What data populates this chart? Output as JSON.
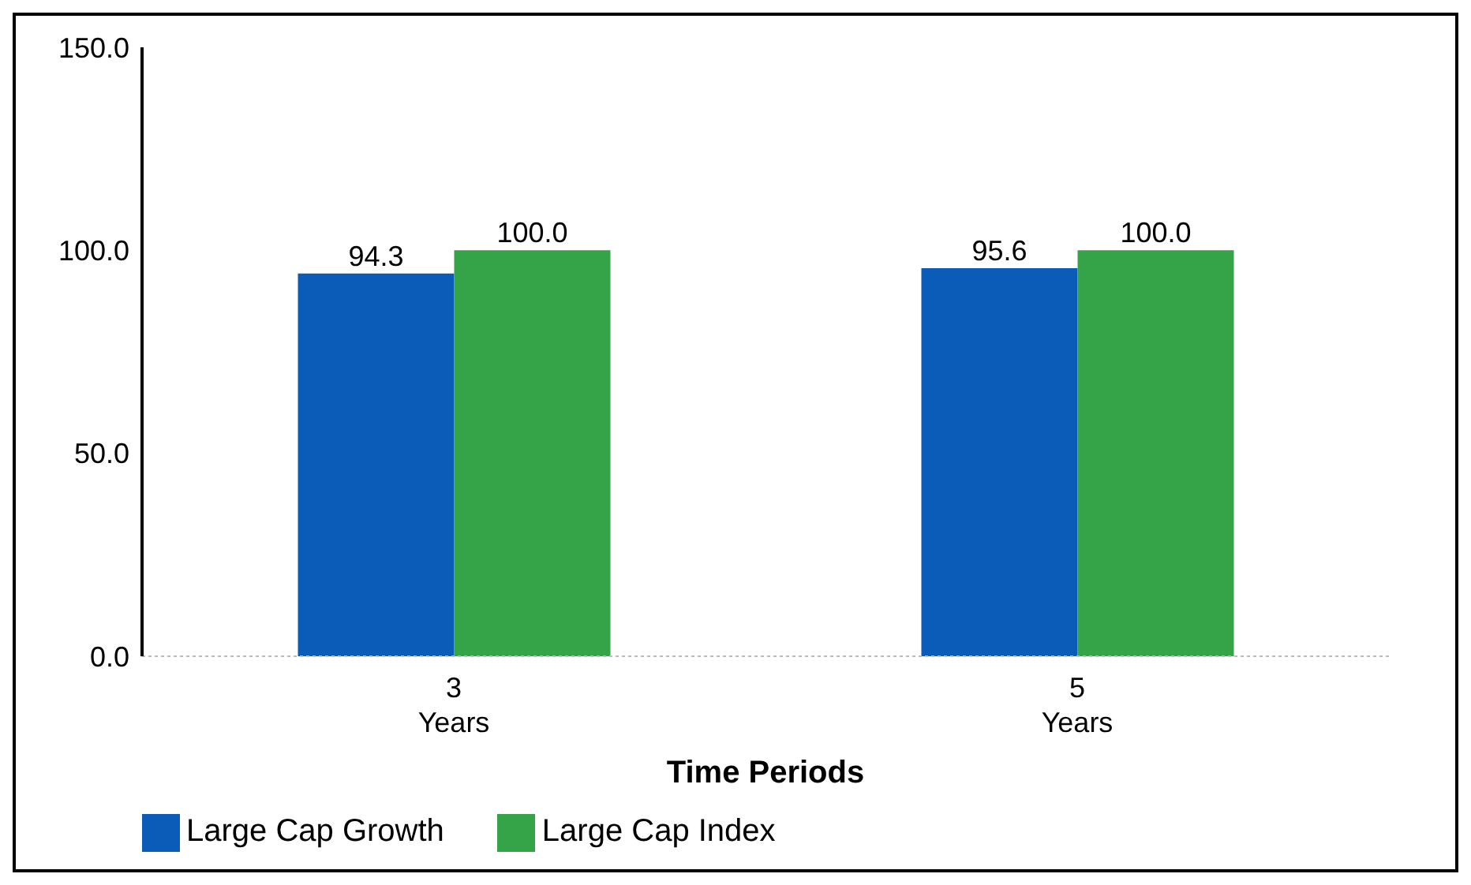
{
  "chart_data": {
    "type": "bar",
    "xlabel": "Time Periods",
    "categories": [
      "3\nYears",
      "5\nYears"
    ],
    "series": [
      {
        "name": "Large Cap Growth",
        "color": "#0a5cb8",
        "values": [
          94.3,
          95.6
        ],
        "value_labels": [
          "94.3",
          "95.6"
        ]
      },
      {
        "name": "Large Cap Index",
        "color": "#35a348",
        "values": [
          100.0,
          100.0
        ],
        "value_labels": [
          "100.0",
          "100.0"
        ]
      }
    ],
    "ylim": [
      0,
      150
    ],
    "yticks": [
      {
        "value": 0,
        "label": "0.0"
      },
      {
        "value": 50,
        "label": "50.0"
      },
      {
        "value": 100,
        "label": "100.0"
      },
      {
        "value": 150,
        "label": "150.0"
      }
    ],
    "legend": "bottom"
  }
}
